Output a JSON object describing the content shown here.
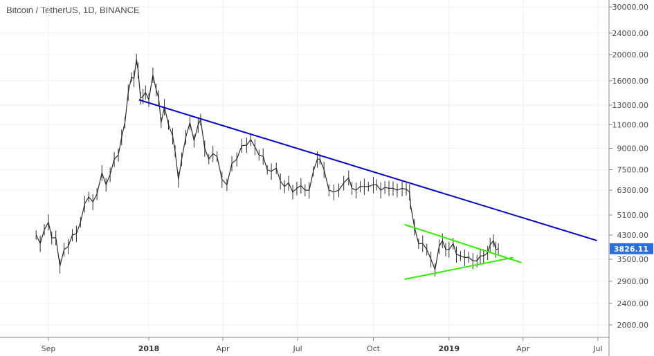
{
  "chart_title": "Bitcoin / TetherUS, 1D, BINANCE",
  "last_price_label": "3826.11",
  "colors": {
    "candle": "#2b2b2b",
    "grid": "#eef0f3",
    "trendline_main": "#0000cc",
    "triangle": "#33ee00",
    "price_tag": "#2a6fdb",
    "axis": "#888888"
  },
  "chart_data": {
    "type": "line",
    "title": "Bitcoin / TetherUS, 1D, BINANCE",
    "y_scale": "log",
    "ylim": [
      1850,
      32000
    ],
    "y_ticks": [
      {
        "value": 30000,
        "label": "30000.00"
      },
      {
        "value": 24000,
        "label": "24000.00"
      },
      {
        "value": 20000,
        "label": "20000.00"
      },
      {
        "value": 16000,
        "label": "16000.00"
      },
      {
        "value": 13000,
        "label": "13000.00"
      },
      {
        "value": 11000,
        "label": "11000.00"
      },
      {
        "value": 9000,
        "label": "9000.00"
      },
      {
        "value": 7500,
        "label": "7500.00"
      },
      {
        "value": 6300,
        "label": "6300.00"
      },
      {
        "value": 5100,
        "label": "5100.00"
      },
      {
        "value": 4300,
        "label": "4300.00"
      },
      {
        "value": 3500,
        "label": "3500.00"
      },
      {
        "value": 2900,
        "label": "2900.00"
      },
      {
        "value": 2400,
        "label": "2400.00"
      },
      {
        "value": 2000,
        "label": "2000.00"
      }
    ],
    "x_range": [
      "2017-08-15",
      "2019-07-25"
    ],
    "x_ticks": [
      {
        "date": "2017-09-01",
        "label": "Sep",
        "bold": false
      },
      {
        "date": "2018-01-01",
        "label": "2018",
        "bold": true
      },
      {
        "date": "2018-04-01",
        "label": "Apr",
        "bold": false
      },
      {
        "date": "2018-07-01",
        "label": "Jul",
        "bold": false
      },
      {
        "date": "2018-10-01",
        "label": "Oct",
        "bold": false
      },
      {
        "date": "2019-01-01",
        "label": "2019",
        "bold": true
      },
      {
        "date": "2019-04-01",
        "label": "Apr",
        "bold": false
      },
      {
        "date": "2019-07-01",
        "label": "Jul",
        "bold": false
      }
    ],
    "grid": true,
    "series": [
      {
        "points": [
          [
            "2017-08-17",
            4300
          ],
          [
            "2017-08-22",
            4000
          ],
          [
            "2017-08-27",
            4500
          ],
          [
            "2017-09-01",
            4800
          ],
          [
            "2017-09-05",
            4200
          ],
          [
            "2017-09-10",
            4200
          ],
          [
            "2017-09-15",
            3300
          ],
          [
            "2017-09-20",
            3800
          ],
          [
            "2017-09-25",
            3900
          ],
          [
            "2017-09-30",
            4300
          ],
          [
            "2017-10-05",
            4350
          ],
          [
            "2017-10-10",
            4800
          ],
          [
            "2017-10-15",
            5600
          ],
          [
            "2017-10-20",
            5950
          ],
          [
            "2017-10-25",
            5700
          ],
          [
            "2017-10-30",
            6100
          ],
          [
            "2017-11-05",
            7300
          ],
          [
            "2017-11-10",
            6600
          ],
          [
            "2017-11-15",
            7200
          ],
          [
            "2017-11-20",
            8200
          ],
          [
            "2017-11-25",
            8500
          ],
          [
            "2017-11-29",
            9900
          ],
          [
            "2017-12-03",
            11200
          ],
          [
            "2017-12-07",
            14500
          ],
          [
            "2017-12-11",
            16500
          ],
          [
            "2017-12-14",
            16300
          ],
          [
            "2017-12-17",
            19200
          ],
          [
            "2017-12-19",
            17500
          ],
          [
            "2017-12-22",
            13800
          ],
          [
            "2017-12-25",
            14000
          ],
          [
            "2017-12-28",
            14500
          ],
          [
            "2018-01-01",
            13600
          ],
          [
            "2018-01-06",
            16800
          ],
          [
            "2018-01-10",
            14800
          ],
          [
            "2018-01-13",
            13800
          ],
          [
            "2018-01-16",
            11200
          ],
          [
            "2018-01-20",
            12800
          ],
          [
            "2018-01-25",
            11000
          ],
          [
            "2018-01-30",
            10000
          ],
          [
            "2018-02-02",
            8800
          ],
          [
            "2018-02-06",
            6900
          ],
          [
            "2018-02-10",
            8200
          ],
          [
            "2018-02-15",
            9900
          ],
          [
            "2018-02-20",
            11200
          ],
          [
            "2018-02-25",
            9600
          ],
          [
            "2018-03-02",
            11000
          ],
          [
            "2018-03-05",
            11500
          ],
          [
            "2018-03-10",
            9000
          ],
          [
            "2018-03-15",
            8200
          ],
          [
            "2018-03-20",
            8600
          ],
          [
            "2018-03-25",
            8400
          ],
          [
            "2018-03-31",
            6900
          ],
          [
            "2018-04-06",
            6600
          ],
          [
            "2018-04-12",
            7900
          ],
          [
            "2018-04-18",
            8200
          ],
          [
            "2018-04-24",
            9200
          ],
          [
            "2018-04-30",
            9250
          ],
          [
            "2018-05-05",
            9700
          ],
          [
            "2018-05-10",
            9100
          ],
          [
            "2018-05-15",
            8500
          ],
          [
            "2018-05-20",
            8400
          ],
          [
            "2018-05-25",
            7500
          ],
          [
            "2018-05-30",
            7400
          ],
          [
            "2018-06-05",
            7600
          ],
          [
            "2018-06-10",
            6800
          ],
          [
            "2018-06-15",
            6500
          ],
          [
            "2018-06-20",
            6700
          ],
          [
            "2018-06-25",
            6200
          ],
          [
            "2018-06-30",
            6400
          ],
          [
            "2018-07-05",
            6550
          ],
          [
            "2018-07-10",
            6300
          ],
          [
            "2018-07-15",
            6300
          ],
          [
            "2018-07-20",
            7400
          ],
          [
            "2018-07-25",
            8200
          ],
          [
            "2018-07-28",
            8200
          ],
          [
            "2018-08-02",
            7500
          ],
          [
            "2018-08-08",
            6300
          ],
          [
            "2018-08-14",
            6200
          ],
          [
            "2018-08-20",
            6300
          ],
          [
            "2018-08-26",
            6700
          ],
          [
            "2018-09-01",
            7000
          ],
          [
            "2018-09-05",
            6400
          ],
          [
            "2018-09-10",
            6300
          ],
          [
            "2018-09-15",
            6500
          ],
          [
            "2018-09-20",
            6500
          ],
          [
            "2018-09-25",
            6500
          ],
          [
            "2018-10-01",
            6600
          ],
          [
            "2018-10-05",
            6600
          ],
          [
            "2018-10-10",
            6300
          ],
          [
            "2018-10-15",
            6450
          ],
          [
            "2018-10-20",
            6400
          ],
          [
            "2018-10-25",
            6400
          ],
          [
            "2018-10-30",
            6300
          ],
          [
            "2018-11-05",
            6400
          ],
          [
            "2018-11-10",
            6350
          ],
          [
            "2018-11-14",
            6200
          ],
          [
            "2018-11-15",
            5600
          ],
          [
            "2018-11-20",
            4600
          ],
          [
            "2018-11-25",
            4000
          ],
          [
            "2018-11-30",
            4000
          ],
          [
            "2018-12-05",
            3800
          ],
          [
            "2018-12-10",
            3500
          ],
          [
            "2018-12-15",
            3200
          ],
          [
            "2018-12-20",
            3900
          ],
          [
            "2018-12-24",
            4100
          ],
          [
            "2018-12-28",
            3800
          ],
          [
            "2019-01-01",
            3800
          ],
          [
            "2019-01-06",
            4000
          ],
          [
            "2019-01-10",
            3650
          ],
          [
            "2019-01-15",
            3600
          ],
          [
            "2019-01-20",
            3550
          ],
          [
            "2019-01-25",
            3560
          ],
          [
            "2019-01-30",
            3450
          ],
          [
            "2019-02-04",
            3450
          ],
          [
            "2019-02-08",
            3600
          ],
          [
            "2019-02-12",
            3600
          ],
          [
            "2019-02-17",
            3700
          ],
          [
            "2019-02-20",
            3950
          ],
          [
            "2019-02-24",
            4100
          ],
          [
            "2019-02-27",
            3800
          ],
          [
            "2019-03-02",
            3826
          ]
        ]
      }
    ],
    "annotations": [
      {
        "type": "trendline",
        "color": "trendline_main",
        "from": [
          "2017-12-20",
          13600
        ],
        "to": [
          "2019-06-30",
          4100
        ]
      },
      {
        "type": "trendline",
        "color": "triangle",
        "from": [
          "2018-11-08",
          4700
        ],
        "to": [
          "2019-03-30",
          3400
        ]
      },
      {
        "type": "trendline",
        "color": "triangle",
        "from": [
          "2018-11-08",
          2950
        ],
        "to": [
          "2019-03-20",
          3550
        ]
      }
    ]
  }
}
